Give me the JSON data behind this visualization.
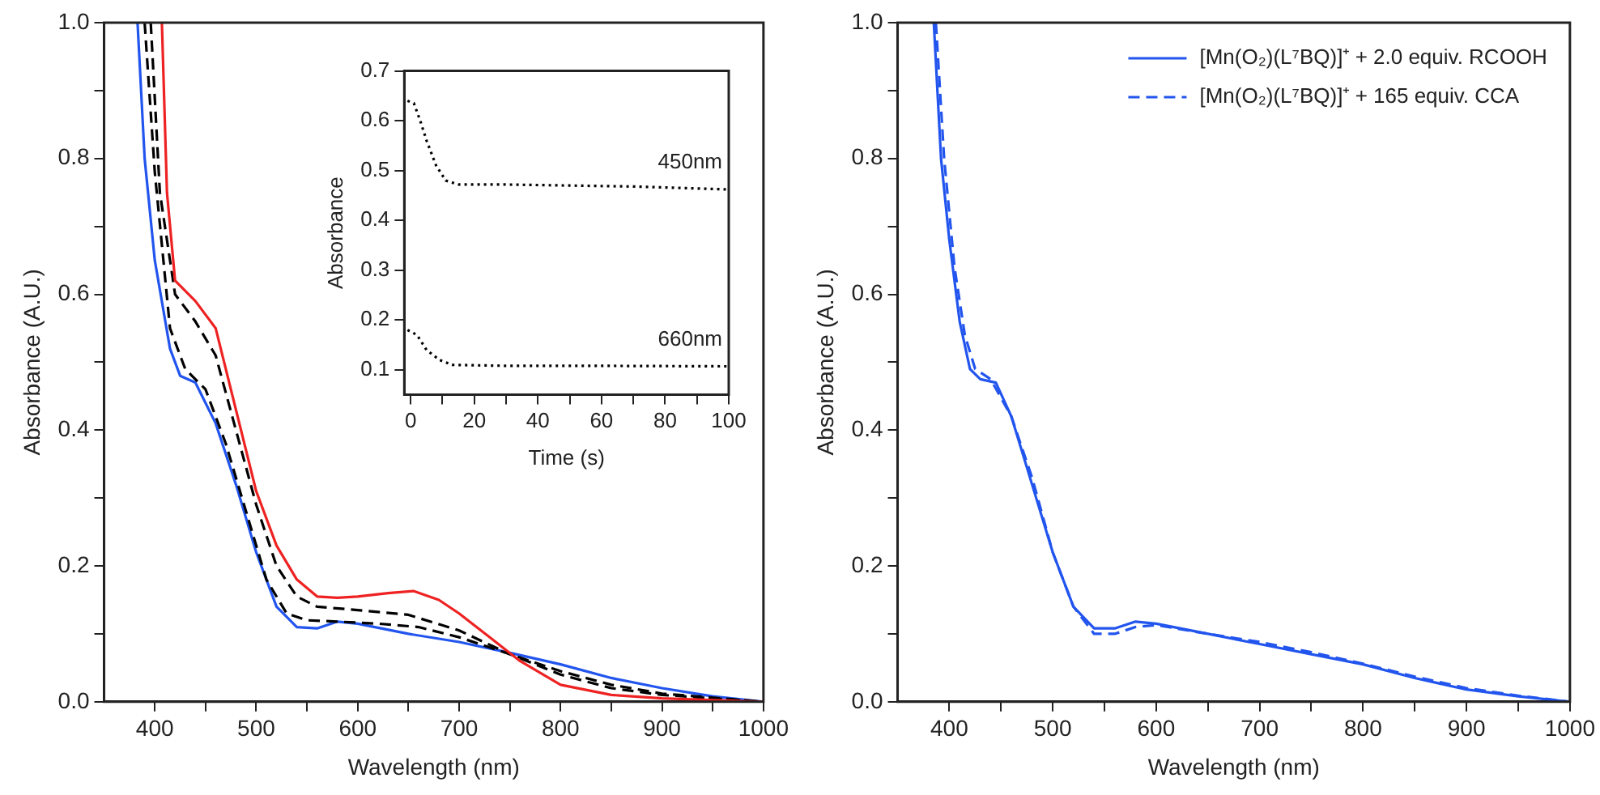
{
  "chart_data": [
    {
      "type": "line",
      "xlabel": "Wavelength (nm)",
      "ylabel": "Absorbance (A.U.)",
      "xlim": [
        350,
        1000
      ],
      "ylim": [
        0,
        1.0
      ],
      "xticks": [
        400,
        {
          "value": 450,
          "label": null
        },
        500,
        {
          "value": 550,
          "label": null
        },
        600,
        {
          "value": 650,
          "label": null
        },
        700,
        {
          "value": 750,
          "label": null
        },
        800,
        {
          "value": 850,
          "label": null
        },
        900,
        {
          "value": 950,
          "label": null
        },
        1000
      ],
      "yticks": [
        {
          "value": 0,
          "label": "0.0"
        },
        {
          "value": 0.1,
          "label": null
        },
        0.2,
        {
          "value": 0.3,
          "label": null
        },
        0.4,
        {
          "value": 0.5,
          "label": null
        },
        0.6,
        {
          "value": 0.7,
          "label": null
        },
        0.8,
        {
          "value": 0.9,
          "label": null
        },
        {
          "value": 1,
          "label": "1.0"
        }
      ],
      "grid": false,
      "legend": false,
      "marker": "none",
      "series": [
        {
          "color": "#ee2222",
          "line_style": "solid",
          "x": [
            407,
            412,
            420,
            440,
            460,
            480,
            500,
            520,
            540,
            560,
            580,
            600,
            630,
            655,
            680,
            700,
            730,
            760,
            800,
            850,
            900,
            1000
          ],
          "values": [
            1.0,
            0.75,
            0.62,
            0.59,
            0.55,
            0.43,
            0.31,
            0.23,
            0.18,
            0.155,
            0.153,
            0.155,
            0.16,
            0.163,
            0.15,
            0.13,
            0.095,
            0.06,
            0.025,
            0.01,
            0.005,
            0
          ]
        },
        {
          "color": "#000000",
          "line_style": "dashed",
          "x": [
            396,
            405,
            420,
            440,
            460,
            480,
            500,
            520,
            540,
            560,
            600,
            650,
            700,
            750,
            800,
            850,
            900,
            1000
          ],
          "values": [
            1.0,
            0.75,
            0.6,
            0.56,
            0.51,
            0.4,
            0.29,
            0.2,
            0.155,
            0.14,
            0.135,
            0.128,
            0.105,
            0.07,
            0.04,
            0.02,
            0.01,
            0
          ]
        },
        {
          "color": "#000000",
          "line_style": "dashed",
          "x": [
            390,
            400,
            415,
            430,
            450,
            470,
            490,
            510,
            530,
            550,
            580,
            620,
            660,
            700,
            750,
            800,
            850,
            900,
            1000
          ],
          "values": [
            1.0,
            0.78,
            0.55,
            0.49,
            0.46,
            0.38,
            0.28,
            0.18,
            0.13,
            0.12,
            0.118,
            0.115,
            0.11,
            0.095,
            0.07,
            0.045,
            0.025,
            0.012,
            0
          ]
        },
        {
          "color": "#2255ee",
          "line_style": "solid",
          "x": [
            383,
            390,
            400,
            415,
            425,
            440,
            460,
            480,
            500,
            520,
            540,
            560,
            580,
            600,
            650,
            700,
            750,
            800,
            850,
            900,
            950,
            1000
          ],
          "values": [
            1.0,
            0.8,
            0.65,
            0.52,
            0.48,
            0.47,
            0.41,
            0.32,
            0.22,
            0.14,
            0.11,
            0.108,
            0.118,
            0.115,
            0.1,
            0.088,
            0.072,
            0.055,
            0.035,
            0.02,
            0.008,
            0
          ]
        }
      ]
    },
    {
      "type": "line",
      "xlabel": "Time (s)",
      "ylabel": "Absorbance",
      "xlim": [
        -2,
        100
      ],
      "ylim": [
        0.05,
        0.7
      ],
      "xticks": [
        0,
        {
          "value": 10,
          "label": null
        },
        20,
        {
          "value": 30,
          "label": null
        },
        40,
        {
          "value": 50,
          "label": null
        },
        60,
        {
          "value": 70,
          "label": null
        },
        80,
        {
          "value": 90,
          "label": null
        },
        100
      ],
      "yticks": [
        0.1,
        0.2,
        0.3,
        0.4,
        0.5,
        0.6,
        0.7
      ],
      "grid": false,
      "legend": false,
      "marker": "none",
      "annotations": [
        "450nm",
        "660nm"
      ],
      "series": [
        {
          "color": "#000000",
          "line_style": "dotted",
          "x": [
            -1,
            1,
            3,
            5,
            8,
            11,
            15,
            30,
            50,
            70,
            100
          ],
          "values": [
            0.64,
            0.635,
            0.6,
            0.56,
            0.51,
            0.48,
            0.472,
            0.472,
            0.47,
            0.468,
            0.462
          ]
        },
        {
          "color": "#000000",
          "line_style": "dotted",
          "x": [
            -1,
            2,
            5,
            9,
            13,
            30,
            60,
            100
          ],
          "values": [
            0.18,
            0.17,
            0.14,
            0.12,
            0.11,
            0.108,
            0.108,
            0.107
          ]
        }
      ]
    },
    {
      "type": "line",
      "xlabel": "Wavelength (nm)",
      "ylabel": "Absorbance (A.U.)",
      "xlim": [
        350,
        1000
      ],
      "ylim": [
        0,
        1.0
      ],
      "xticks": [
        400,
        {
          "value": 450,
          "label": null
        },
        500,
        {
          "value": 550,
          "label": null
        },
        600,
        {
          "value": 650,
          "label": null
        },
        700,
        {
          "value": 750,
          "label": null
        },
        800,
        {
          "value": 850,
          "label": null
        },
        900,
        {
          "value": 950,
          "label": null
        },
        1000
      ],
      "yticks": [
        {
          "value": 0,
          "label": "0.0"
        },
        {
          "value": 0.1,
          "label": null
        },
        0.2,
        {
          "value": 0.3,
          "label": null
        },
        0.4,
        {
          "value": 0.5,
          "label": null
        },
        0.6,
        {
          "value": 0.7,
          "label": null
        },
        0.8,
        {
          "value": 0.9,
          "label": null
        },
        {
          "value": 1,
          "label": "1.0"
        }
      ],
      "grid": false,
      "legend": "top right",
      "marker": "none",
      "series": [
        {
          "name": "[Mn(O₂)(L⁷BQ)]⁺ + 2.0 equiv. RCOOH",
          "color": "#2255ee",
          "line_style": "solid",
          "x": [
            385,
            392,
            400,
            410,
            420,
            430,
            445,
            460,
            480,
            500,
            520,
            540,
            560,
            580,
            600,
            650,
            700,
            750,
            800,
            850,
            900,
            950,
            1000
          ],
          "values": [
            1.0,
            0.8,
            0.68,
            0.56,
            0.49,
            0.475,
            0.47,
            0.42,
            0.32,
            0.22,
            0.14,
            0.108,
            0.108,
            0.118,
            0.115,
            0.1,
            0.085,
            0.07,
            0.055,
            0.035,
            0.018,
            0.008,
            0
          ]
        },
        {
          "name": "[Mn(O₂)(L⁷BQ)]⁺ + 165 equiv. CCA",
          "color": "#2255ee",
          "line_style": "dashed",
          "x": [
            387,
            395,
            405,
            415,
            425,
            440,
            460,
            480,
            500,
            520,
            540,
            560,
            580,
            600,
            650,
            700,
            750,
            800,
            850,
            900,
            950,
            1000
          ],
          "values": [
            1.0,
            0.8,
            0.64,
            0.54,
            0.49,
            0.475,
            0.42,
            0.33,
            0.22,
            0.14,
            0.1,
            0.1,
            0.11,
            0.113,
            0.1,
            0.088,
            0.073,
            0.056,
            0.037,
            0.02,
            0.009,
            0
          ]
        }
      ]
    }
  ]
}
